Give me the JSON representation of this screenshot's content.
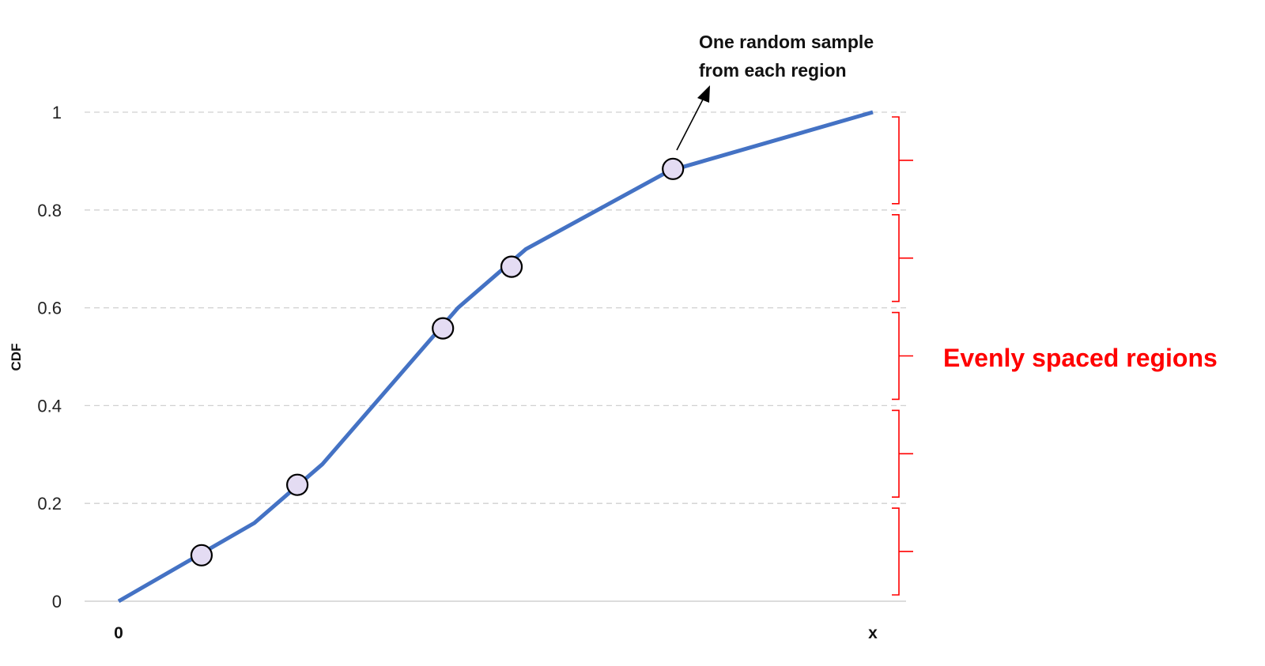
{
  "chart_data": {
    "type": "line",
    "title": "",
    "xlabel": "",
    "ylabel": "CDF",
    "x_start_label": "0",
    "x_end_label": "x",
    "ylim": [
      0,
      1
    ],
    "y_ticks": [
      "0",
      "0.2",
      "0.4",
      "0.6",
      "0.8",
      "1"
    ],
    "grid": "horizontal dashed",
    "x": [
      0,
      0.18,
      0.27,
      0.45,
      0.54,
      0.73,
      1
    ],
    "y": [
      0,
      0.16,
      0.28,
      0.6,
      0.72,
      0.88,
      1
    ],
    "sample_points": [
      {
        "x": 0.11,
        "y": 0.094
      },
      {
        "x": 0.237,
        "y": 0.238
      },
      {
        "x": 0.43,
        "y": 0.558
      },
      {
        "x": 0.521,
        "y": 0.684
      },
      {
        "x": 0.735,
        "y": 0.884
      }
    ],
    "regions": [
      [
        0.8,
        1.0
      ],
      [
        0.6,
        0.8
      ],
      [
        0.4,
        0.6
      ],
      [
        0.2,
        0.4
      ],
      [
        0.0,
        0.2
      ]
    ],
    "annotation_lines": [
      "One random sample",
      "from each region"
    ],
    "regions_label": "Evenly spaced regions",
    "colors": {
      "line": "#4472c4",
      "point_fill": "#e4dcf3",
      "point_stroke": "#000000",
      "brace": "#ff0000",
      "regions_label": "#ff0000",
      "grid": "#d0d0d0"
    }
  }
}
